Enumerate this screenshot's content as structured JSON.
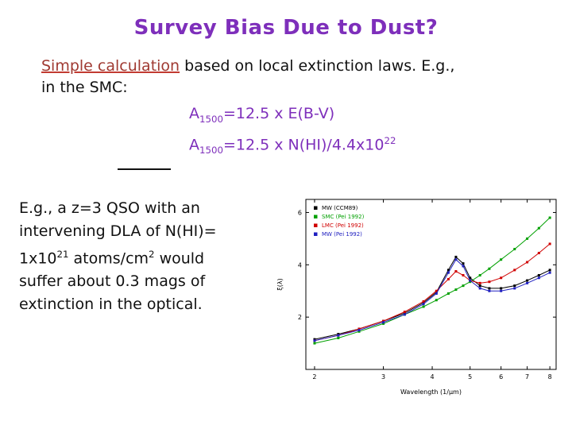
{
  "slide": {
    "title": "Survey Bias Due to Dust?",
    "intro": {
      "highlight": "Simple calculation",
      "rest_line1": " based on local extinction laws.  E.g.,",
      "line2": "in the SMC:"
    },
    "equations": {
      "eq1": {
        "base": "A",
        "sub": "1500",
        "rest": "=12.5 x E(B-V)"
      },
      "eq2": {
        "base": "A",
        "sub": "1500",
        "mid": "=12.5 x N(HI)/4.4x10",
        "sup": "22"
      }
    },
    "body": {
      "seg1": "E.g., a z=3 QSO with an intervening DLA of N(HI)= 1x10",
      "sup1": "21",
      "seg2": " atoms/cm",
      "sup2": "2",
      "seg3": "  would suffer about 0.3 mags of extinction in the optical."
    },
    "colors": {
      "title_purple": "#7e2fbb",
      "dark_red": "#a03a32",
      "text_black": "#111111"
    }
  },
  "chart_data": {
    "type": "line",
    "title": "",
    "xlabel": "Wavelength (1/μm)",
    "ylabel": "ξ(λ)",
    "x_scale": "log",
    "xlim": [
      1.9,
      8.3
    ],
    "ylim": [
      0,
      6.5
    ],
    "x_ticks": [
      2,
      3,
      4,
      5,
      6,
      7,
      8
    ],
    "y_ticks": [
      2,
      4,
      6
    ],
    "legend_position": "top-left",
    "grid": false,
    "x": [
      2.0,
      2.3,
      2.6,
      3.0,
      3.4,
      3.8,
      4.1,
      4.4,
      4.6,
      4.8,
      5.0,
      5.3,
      5.6,
      6.0,
      6.5,
      7.0,
      7.5,
      8.0
    ],
    "series": [
      {
        "name": "MW (CCM89)",
        "color": "#000000",
        "values": [
          1.15,
          1.35,
          1.55,
          1.85,
          2.15,
          2.55,
          2.95,
          3.8,
          4.3,
          4.05,
          3.5,
          3.2,
          3.1,
          3.1,
          3.2,
          3.4,
          3.6,
          3.8
        ]
      },
      {
        "name": "SMC (Pei 1992)",
        "color": "#00a000",
        "values": [
          1.0,
          1.2,
          1.45,
          1.75,
          2.1,
          2.4,
          2.65,
          2.9,
          3.05,
          3.2,
          3.35,
          3.6,
          3.85,
          4.2,
          4.6,
          5.0,
          5.4,
          5.8
        ]
      },
      {
        "name": "LMC (Pei 1992)",
        "color": "#d00000",
        "values": [
          1.1,
          1.3,
          1.55,
          1.85,
          2.2,
          2.6,
          3.0,
          3.45,
          3.75,
          3.6,
          3.4,
          3.3,
          3.35,
          3.5,
          3.8,
          4.1,
          4.45,
          4.8
        ]
      },
      {
        "name": "MW (Pei 1992)",
        "color": "#2020c0",
        "values": [
          1.1,
          1.3,
          1.5,
          1.8,
          2.1,
          2.5,
          2.9,
          3.7,
          4.2,
          3.95,
          3.4,
          3.1,
          3.0,
          3.0,
          3.1,
          3.3,
          3.5,
          3.7
        ]
      }
    ]
  }
}
